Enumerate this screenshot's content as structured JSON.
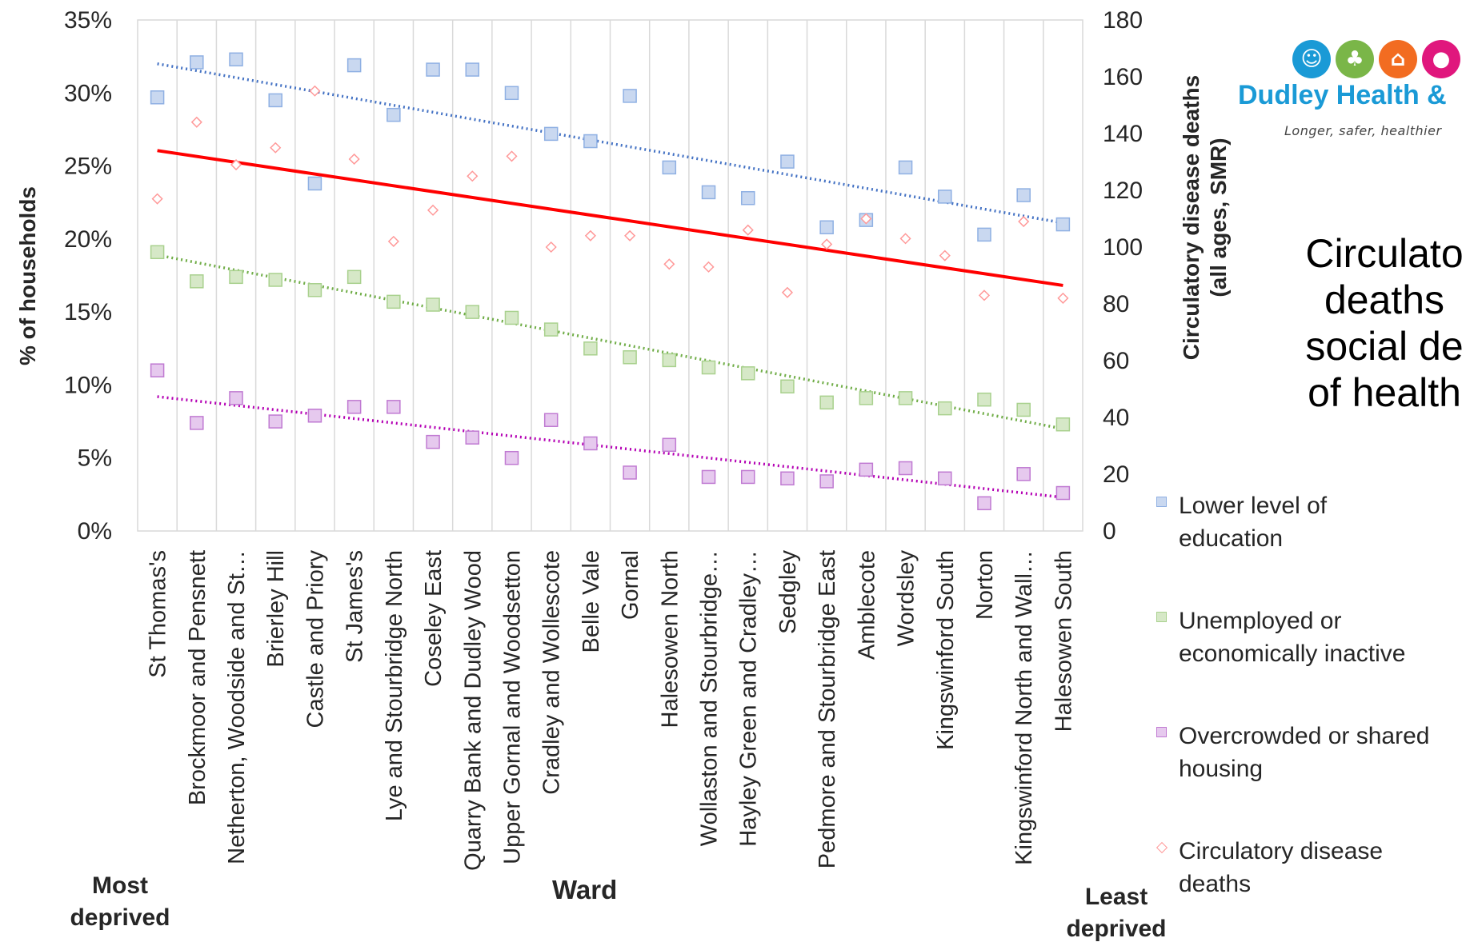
{
  "chart_data": {
    "type": "scatter",
    "xlabel": "Ward",
    "ylabel_left": "% of households",
    "ylabel_right_line1": "Circulatory disease deaths",
    "ylabel_right_line2": "(all ages, SMR)",
    "left_axis": {
      "min": 0,
      "max": 35,
      "ticks": [
        "0%",
        "5%",
        "10%",
        "15%",
        "20%",
        "25%",
        "30%",
        "35%"
      ]
    },
    "right_axis": {
      "min": 0,
      "max": 180,
      "ticks": [
        "0",
        "20",
        "40",
        "60",
        "80",
        "100",
        "120",
        "140",
        "160",
        "180"
      ]
    },
    "grid": "vertical",
    "legend_position": "right",
    "categories": [
      "St Thomas's",
      "Brockmoor and Pensnett",
      "Netherton, Woodside and St…",
      "Brierley Hill",
      "Castle and Priory",
      "St James's",
      "Lye and Stourbridge North",
      "Coseley East",
      "Quarry Bank and Dudley Wood",
      "Upper Gornal and Woodsetton",
      "Cradley and Wollescote",
      "Belle Vale",
      "Gornal",
      "Halesowen North",
      "Wollaston and Stourbridge…",
      "Hayley Green and Cradley…",
      "Sedgley",
      "Pedmore and Stourbridge East",
      "Amblecote",
      "Wordsley",
      "Kingswinford South",
      "Norton",
      "Kingswinford North and Wall…",
      "Halesowen South"
    ],
    "series": [
      {
        "name": "Lower level of education",
        "axis": "left",
        "color": "#8fb0e3",
        "values": [
          29.7,
          32.1,
          32.3,
          29.5,
          23.8,
          31.9,
          28.5,
          31.6,
          31.6,
          30.0,
          27.2,
          26.7,
          29.8,
          24.9,
          23.2,
          22.8,
          25.3,
          20.8,
          21.3,
          24.9,
          22.9,
          20.3,
          23.0,
          21.0
        ],
        "trend": [
          32.0,
          21.1
        ]
      },
      {
        "name": "Unemployed or economically inactive",
        "axis": "left",
        "color": "#a9d18e",
        "values": [
          19.1,
          17.1,
          17.4,
          17.2,
          16.5,
          17.4,
          15.7,
          15.5,
          15.0,
          14.6,
          13.8,
          12.5,
          11.9,
          11.7,
          11.2,
          10.8,
          9.9,
          8.8,
          9.1,
          9.1,
          8.4,
          9.0,
          8.3,
          7.3
        ],
        "trend": [
          18.9,
          7.0
        ]
      },
      {
        "name": "Overcrowded or shared housing",
        "axis": "left",
        "color": "#cc99d9",
        "values": [
          11.0,
          7.4,
          9.1,
          7.5,
          7.9,
          8.5,
          8.5,
          6.1,
          6.4,
          5.0,
          7.6,
          6.0,
          4.0,
          5.9,
          3.7,
          3.7,
          3.6,
          3.4,
          4.2,
          4.3,
          3.6,
          1.9,
          3.9,
          2.6
        ],
        "trend": [
          9.2,
          2.3
        ]
      },
      {
        "name": "Circulatory disease deaths",
        "axis": "right",
        "color": "#ff9999",
        "values": [
          117,
          144,
          129,
          135,
          155,
          131,
          102,
          113,
          125,
          132,
          100,
          104,
          104,
          94,
          93,
          106,
          84,
          101,
          110,
          103,
          97,
          83,
          109,
          82
        ],
        "trend": [
          134.0,
          86.5
        ]
      }
    ],
    "annotations": {
      "most_deprived": "Most\ndeprived",
      "least_deprived": "Least\ndeprived"
    }
  },
  "side_title": "Circulato\ndeaths\nsocial de\nof health",
  "logo": {
    "name": "Dudley Health &",
    "tagline": "Longer, safer, healthier",
    "icons": [
      {
        "name": "family-icon",
        "color": "#1a9ad6"
      },
      {
        "name": "tree-icon",
        "color": "#7ab648"
      },
      {
        "name": "home-icon",
        "color": "#f26c21"
      },
      {
        "name": "apple-icon",
        "color": "#e0177d"
      }
    ]
  },
  "legend": [
    {
      "label": "Lower level of\neducation",
      "fill": "#c9d8f0",
      "stroke": "#8fb0e3",
      "shape": "square"
    },
    {
      "label": "Unemployed or\neconomically inactive",
      "fill": "#d6e8c7",
      "stroke": "#a9d18e",
      "shape": "square"
    },
    {
      "label": "Overcrowded or shared\nhousing",
      "fill": "#e6c9ee",
      "stroke": "#c07ad2",
      "shape": "square"
    },
    {
      "label": "Circulatory disease\ndeaths",
      "fill": "#ffffff",
      "stroke": "#ff9999",
      "shape": "diamond"
    }
  ]
}
